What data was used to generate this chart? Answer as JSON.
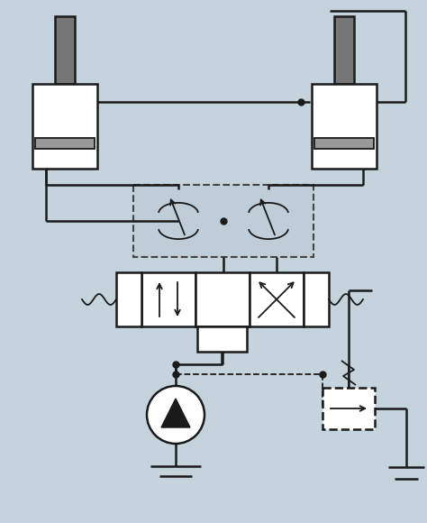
{
  "bg_color": "#c5d3dc",
  "line_color": "#1a1a1a",
  "fill_white": "#ffffff",
  "fill_light_blue": "#bfcdd8",
  "fill_darkgray": "#777777",
  "fill_midgray": "#999999",
  "figsize": [
    4.74,
    5.8
  ],
  "dpi": 100
}
